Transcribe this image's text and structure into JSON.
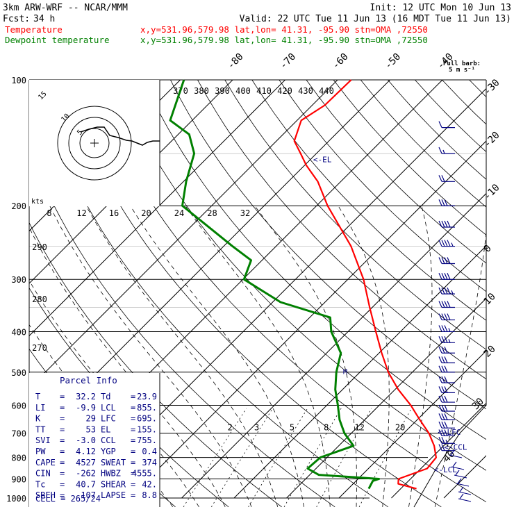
{
  "header": {
    "model": "3km ARW-WRF -- NCAR/MMM",
    "init": "Init: 12 UTC Mon 10 Jun 13",
    "fcst_label": "Fcst:",
    "fcst_value": "34 h",
    "valid": "Valid: 22 UTC Tue 11 Jun 13 (16 MDT Tue 11 Jun 13)",
    "temp_label": "Temperature",
    "dew_label": "Dewpoint temperature",
    "location": "x,y=531.96,579.98   lat,lon= 41.31, -95.90   stn=OMA ,72550",
    "barb_note_1": "Full barb:",
    "barb_note_2": "5 m s⁻¹"
  },
  "colors": {
    "temperature": "#ff0000",
    "dewpoint": "#008000",
    "wind": "#000080",
    "grid": "#000000"
  },
  "chart_data": {
    "type": "line",
    "title": "",
    "ylabel": "",
    "y_scale": "log-pressure",
    "ylim": [
      1000,
      100
    ],
    "pressure_ticks": [
      100,
      200,
      300,
      400,
      500,
      600,
      700,
      800,
      900,
      1000
    ],
    "isotherm_labels": [
      40,
      30,
      20,
      10,
      0,
      -10,
      -20,
      -30,
      -40,
      -50,
      -60,
      -70,
      -80
    ],
    "theta_e_labels": [
      370,
      380,
      390,
      400,
      410,
      420,
      430,
      440
    ],
    "theta_labels_left": [
      290,
      280,
      270
    ],
    "mixing_ratio_labels": [
      2,
      3,
      5,
      8,
      12,
      20
    ],
    "hodo_speed_labels": [
      "8",
      "12",
      "16",
      "20",
      "24",
      "28",
      "32"
    ],
    "hodo_unit": "kts",
    "hodo_ring_labels": [
      "5",
      "10",
      "15"
    ],
    "series": [
      {
        "name": "Temperature",
        "points": [
          [
            950,
            33.0
          ],
          [
            925,
            28.6
          ],
          [
            900,
            27.7
          ],
          [
            850,
            31.2
          ],
          [
            800,
            30.8
          ],
          [
            750,
            28.2
          ],
          [
            700,
            24.8
          ],
          [
            650,
            20.5
          ],
          [
            600,
            16.0
          ],
          [
            550,
            10.6
          ],
          [
            500,
            5.4
          ],
          [
            450,
            0.5
          ],
          [
            400,
            -4.7
          ],
          [
            350,
            -10.5
          ],
          [
            300,
            -17.0
          ],
          [
            250,
            -25.7
          ],
          [
            200,
            -37.9
          ],
          [
            175,
            -44.4
          ],
          [
            160,
            -49.7
          ],
          [
            150,
            -53.0
          ],
          [
            140,
            -56.6
          ],
          [
            125,
            -59.2
          ],
          [
            115,
            -57.6
          ],
          [
            100,
            -57.4
          ]
        ]
      },
      {
        "name": "Dewpoint temperature",
        "points": [
          [
            950,
            23.9
          ],
          [
            910,
            23.2
          ],
          [
            900,
            24.0
          ],
          [
            880,
            11.7
          ],
          [
            850,
            8.4
          ],
          [
            800,
            8.7
          ],
          [
            750,
            12.8
          ],
          [
            700,
            8.7
          ],
          [
            650,
            5.2
          ],
          [
            600,
            2.1
          ],
          [
            550,
            -1.4
          ],
          [
            500,
            -4.5
          ],
          [
            450,
            -7.3
          ],
          [
            400,
            -13.2
          ],
          [
            370,
            -16.1
          ],
          [
            340,
            -28.5
          ],
          [
            300,
            -39.8
          ],
          [
            270,
            -42.1
          ],
          [
            250,
            -48.3
          ],
          [
            200,
            -65.6
          ],
          [
            175,
            -69.5
          ],
          [
            150,
            -73.3
          ],
          [
            135,
            -77.9
          ],
          [
            125,
            -84.2
          ],
          [
            100,
            -89.3
          ]
        ]
      }
    ],
    "levels": [
      {
        "label": "<-EL",
        "pressure": 155
      },
      {
        "label": "<-LFC",
        "pressure": 695
      },
      {
        "label": "<-CCL",
        "pressure": 755
      },
      {
        "label": "<-LCL",
        "pressure": 855
      }
    ],
    "wind_barbs": [
      {
        "p": 130,
        "full": 1,
        "half": 0
      },
      {
        "p": 150,
        "full": 1,
        "half": 1
      },
      {
        "p": 175,
        "full": 2,
        "half": 0
      },
      {
        "p": 200,
        "full": 3,
        "half": 0
      },
      {
        "p": 225,
        "full": 4,
        "half": 0
      },
      {
        "p": 250,
        "full": 4,
        "half": 1
      },
      {
        "p": 275,
        "full": 4,
        "half": 0
      },
      {
        "p": 300,
        "full": 4,
        "half": 0
      },
      {
        "p": 325,
        "full": 4,
        "half": 1
      },
      {
        "p": 350,
        "full": 4,
        "half": 0
      },
      {
        "p": 375,
        "full": 4,
        "half": 0
      },
      {
        "p": 400,
        "full": 3,
        "half": 1
      },
      {
        "p": 425,
        "full": 3,
        "half": 1
      },
      {
        "p": 450,
        "full": 3,
        "half": 0
      },
      {
        "p": 475,
        "full": 3,
        "half": 0
      },
      {
        "p": 500,
        "full": 3,
        "half": 0
      },
      {
        "p": 530,
        "full": 3,
        "half": 0
      },
      {
        "p": 560,
        "full": 3,
        "half": 0
      },
      {
        "p": 590,
        "full": 3,
        "half": 0
      },
      {
        "p": 620,
        "full": 3,
        "half": 0
      },
      {
        "p": 650,
        "full": 3,
        "half": 0
      },
      {
        "p": 680,
        "full": 3,
        "half": 0
      },
      {
        "p": 710,
        "full": 3,
        "half": 0
      },
      {
        "p": 740,
        "full": 2,
        "half": 1
      },
      {
        "p": 770,
        "full": 2,
        "half": 0
      }
    ]
  },
  "parcel_info": {
    "title": "Parcel Info",
    "rows": [
      {
        "k1": "T",
        "v1": "32.2",
        "k2": "Td",
        "v2": "23.9"
      },
      {
        "k1": "LI",
        "v1": "-9.9",
        "k2": "LCL",
        "v2": "855."
      },
      {
        "k1": "K",
        "v1": "29",
        "k2": "LFC",
        "v2": "695."
      },
      {
        "k1": "TT",
        "v1": "53",
        "k2": "EL",
        "v2": "155."
      },
      {
        "k1": "SVI",
        "v1": "-3.0",
        "k2": "CCL",
        "v2": "755."
      },
      {
        "k1": "PW",
        "v1": "4.12",
        "k2": "YGP",
        "v2": "0.4"
      },
      {
        "k1": "CAPE",
        "v1": "4527",
        "k2": "SWEAT",
        "v2": "374"
      },
      {
        "k1": "CIN",
        "v1": "-262",
        "k2": "HWBZ",
        "v2": "4555."
      },
      {
        "k1": "Tc",
        "v1": "40.7",
        "k2": "SHEAR",
        "v2": "42."
      },
      {
        "k1": "SREH",
        "v1": "107",
        "k2": "LAPSE",
        "v2": "8.8"
      }
    ],
    "cell": "CELL = 265/24"
  }
}
